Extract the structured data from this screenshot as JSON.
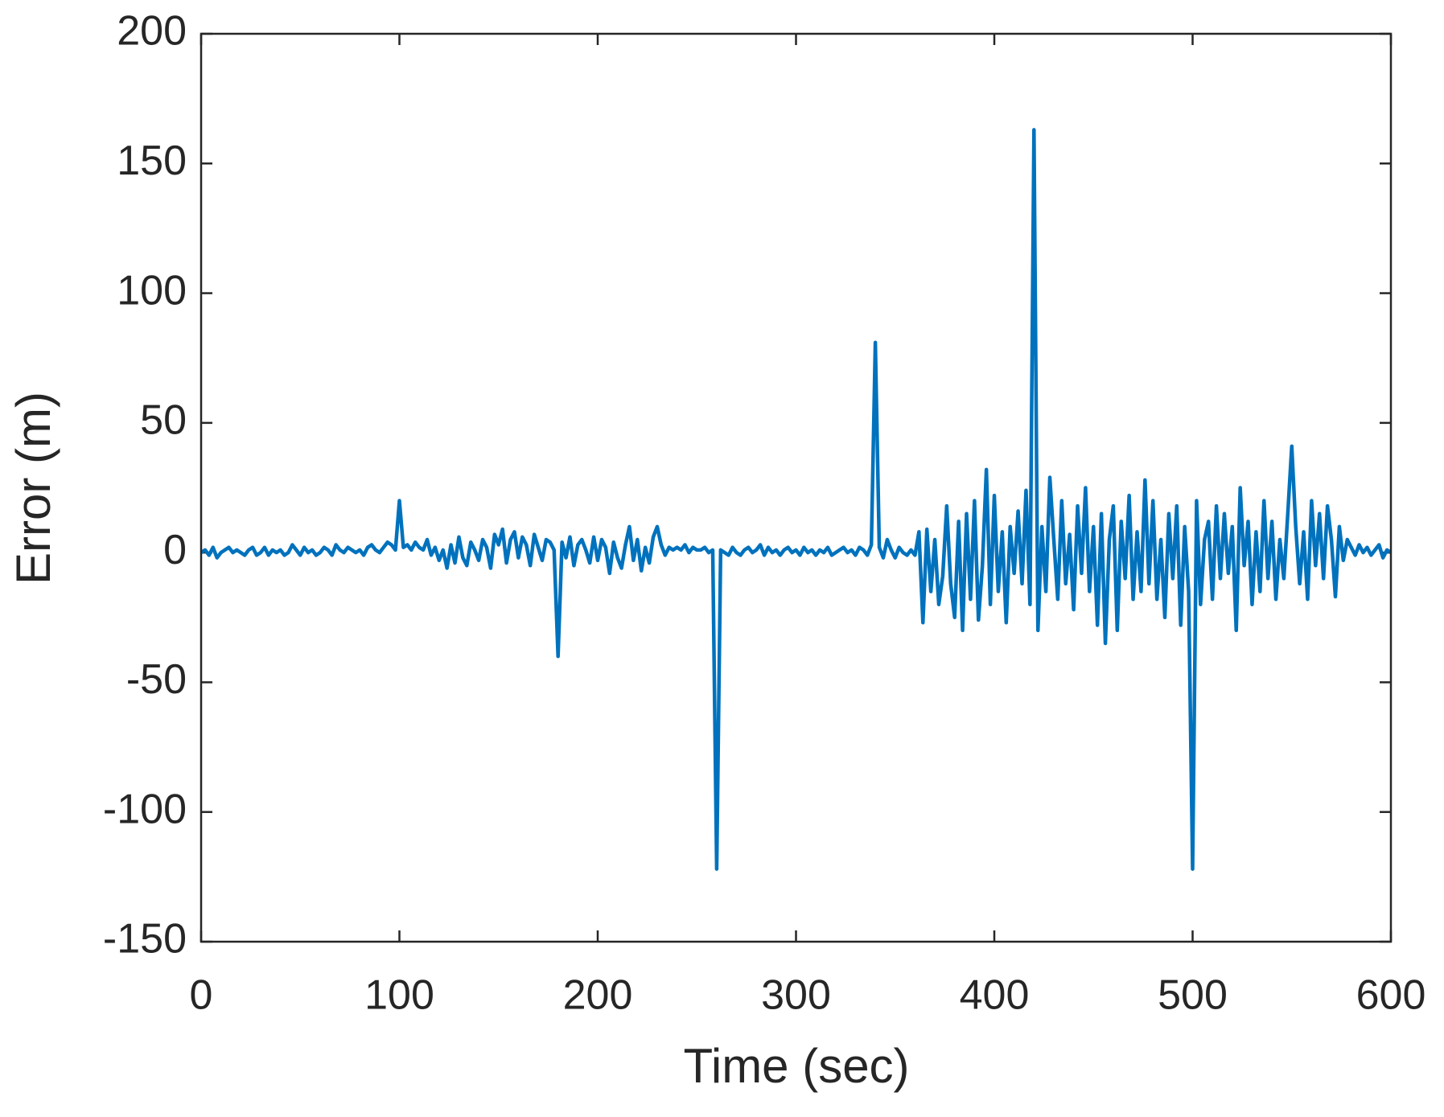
{
  "chart_data": {
    "type": "line",
    "x_label": "Time (sec)",
    "y_label": "Error (m)",
    "xlim": [
      0,
      600
    ],
    "ylim": [
      -150,
      200
    ],
    "xticks": [
      0,
      100,
      200,
      300,
      400,
      500,
      600
    ],
    "yticks": [
      -150,
      -100,
      -50,
      0,
      50,
      100,
      150,
      200
    ],
    "grid": false,
    "x": [
      0,
      2,
      4,
      6,
      8,
      10,
      12,
      14,
      16,
      18,
      20,
      22,
      24,
      26,
      28,
      30,
      32,
      34,
      36,
      38,
      40,
      42,
      44,
      46,
      48,
      50,
      52,
      54,
      56,
      58,
      60,
      62,
      64,
      66,
      68,
      70,
      72,
      74,
      76,
      78,
      80,
      82,
      84,
      86,
      88,
      90,
      92,
      94,
      96,
      98,
      100,
      102,
      104,
      106,
      108,
      110,
      112,
      114,
      116,
      118,
      120,
      122,
      124,
      126,
      128,
      130,
      132,
      134,
      136,
      138,
      140,
      142,
      144,
      146,
      148,
      150,
      152,
      154,
      156,
      158,
      160,
      162,
      164,
      166,
      168,
      170,
      172,
      174,
      176,
      178,
      180,
      182,
      184,
      186,
      188,
      190,
      192,
      194,
      196,
      198,
      200,
      202,
      204,
      206,
      208,
      210,
      212,
      214,
      216,
      218,
      220,
      222,
      224,
      226,
      228,
      230,
      232,
      234,
      236,
      238,
      240,
      242,
      244,
      246,
      248,
      250,
      252,
      254,
      256,
      258,
      260,
      262,
      264,
      266,
      268,
      270,
      272,
      274,
      276,
      278,
      280,
      282,
      284,
      286,
      288,
      290,
      292,
      294,
      296,
      298,
      300,
      302,
      304,
      306,
      308,
      310,
      312,
      314,
      316,
      318,
      320,
      322,
      324,
      326,
      328,
      330,
      332,
      334,
      336,
      338,
      340,
      342,
      344,
      346,
      348,
      350,
      352,
      354,
      356,
      358,
      360,
      362,
      364,
      366,
      368,
      370,
      372,
      374,
      376,
      378,
      380,
      382,
      384,
      386,
      388,
      390,
      392,
      394,
      396,
      398,
      400,
      402,
      404,
      406,
      408,
      410,
      412,
      414,
      416,
      418,
      420,
      422,
      424,
      426,
      428,
      430,
      432,
      434,
      436,
      438,
      440,
      442,
      444,
      446,
      448,
      450,
      452,
      454,
      456,
      458,
      460,
      462,
      464,
      466,
      468,
      470,
      472,
      474,
      476,
      478,
      480,
      482,
      484,
      486,
      488,
      490,
      492,
      494,
      496,
      498,
      500,
      502,
      504,
      506,
      508,
      510,
      512,
      514,
      516,
      518,
      520,
      522,
      524,
      526,
      528,
      530,
      532,
      534,
      536,
      538,
      540,
      542,
      544,
      546,
      548,
      550,
      552,
      554,
      556,
      558,
      560,
      562,
      564,
      566,
      568,
      570,
      572,
      574,
      576,
      578,
      580,
      582,
      584,
      586,
      588,
      590,
      592,
      594,
      596,
      598,
      600
    ],
    "series": [
      {
        "color": "#0072bd",
        "values": [
          0,
          1,
          -1,
          2,
          -2,
          0,
          1,
          2,
          0,
          1,
          0,
          -1,
          1,
          2,
          -1,
          0,
          2,
          -1,
          1,
          0,
          1,
          -1,
          0,
          3,
          1,
          -1,
          2,
          0,
          1,
          -1,
          0,
          2,
          1,
          -1,
          3,
          1,
          0,
          2,
          1,
          0,
          1,
          -1,
          2,
          3,
          1,
          0,
          2,
          4,
          3,
          1,
          20,
          2,
          3,
          1,
          4,
          2,
          1,
          5,
          -1,
          2,
          -3,
          1,
          -6,
          3,
          -4,
          6,
          -2,
          -5,
          4,
          1,
          -3,
          5,
          2,
          -6,
          7,
          3,
          9,
          -4,
          5,
          8,
          -2,
          6,
          3,
          -5,
          7,
          2,
          -3,
          5,
          4,
          1,
          -40,
          4,
          -2,
          6,
          -5,
          3,
          5,
          1,
          -4,
          6,
          -3,
          5,
          2,
          -8,
          4,
          -2,
          -6,
          3,
          10,
          -3,
          5,
          -7,
          2,
          -4,
          6,
          10,
          3,
          -1,
          2,
          1,
          2,
          1,
          3,
          0,
          2,
          1,
          1,
          2,
          0,
          1,
          -122,
          1,
          0,
          -1,
          2,
          0,
          -1,
          1,
          2,
          0,
          1,
          3,
          -1,
          2,
          0,
          1,
          -1,
          1,
          2,
          0,
          1,
          -1,
          2,
          0,
          1,
          -1,
          1,
          0,
          2,
          -1,
          0,
          1,
          2,
          0,
          1,
          -1,
          2,
          1,
          -1,
          3,
          81,
          2,
          -2,
          5,
          1,
          -2,
          2,
          0,
          -1,
          1,
          -1,
          8,
          -27,
          9,
          -15,
          5,
          -20,
          -9,
          18,
          -12,
          -25,
          12,
          -30,
          15,
          -18,
          20,
          -26,
          -5,
          32,
          -20,
          22,
          -15,
          8,
          -27,
          10,
          -8,
          16,
          -12,
          24,
          -20,
          163,
          -30,
          10,
          -15,
          29,
          5,
          -18,
          20,
          -12,
          7,
          -22,
          18,
          -8,
          25,
          -15,
          10,
          -28,
          15,
          -35,
          5,
          18,
          -30,
          12,
          -10,
          22,
          -18,
          8,
          -15,
          28,
          -12,
          20,
          -18,
          5,
          -25,
          15,
          -10,
          18,
          -28,
          10,
          -15,
          -122,
          20,
          -20,
          5,
          12,
          -18,
          18,
          -10,
          15,
          -8,
          10,
          -30,
          25,
          -5,
          12,
          -20,
          8,
          -15,
          20,
          -10,
          12,
          -18,
          5,
          -10,
          15,
          41,
          10,
          -12,
          8,
          -18,
          20,
          -5,
          15,
          -10,
          18,
          5,
          -17,
          10,
          -3,
          5,
          2,
          -1,
          3,
          0,
          2,
          -1,
          1,
          3,
          -2,
          1,
          0
        ]
      }
    ]
  }
}
